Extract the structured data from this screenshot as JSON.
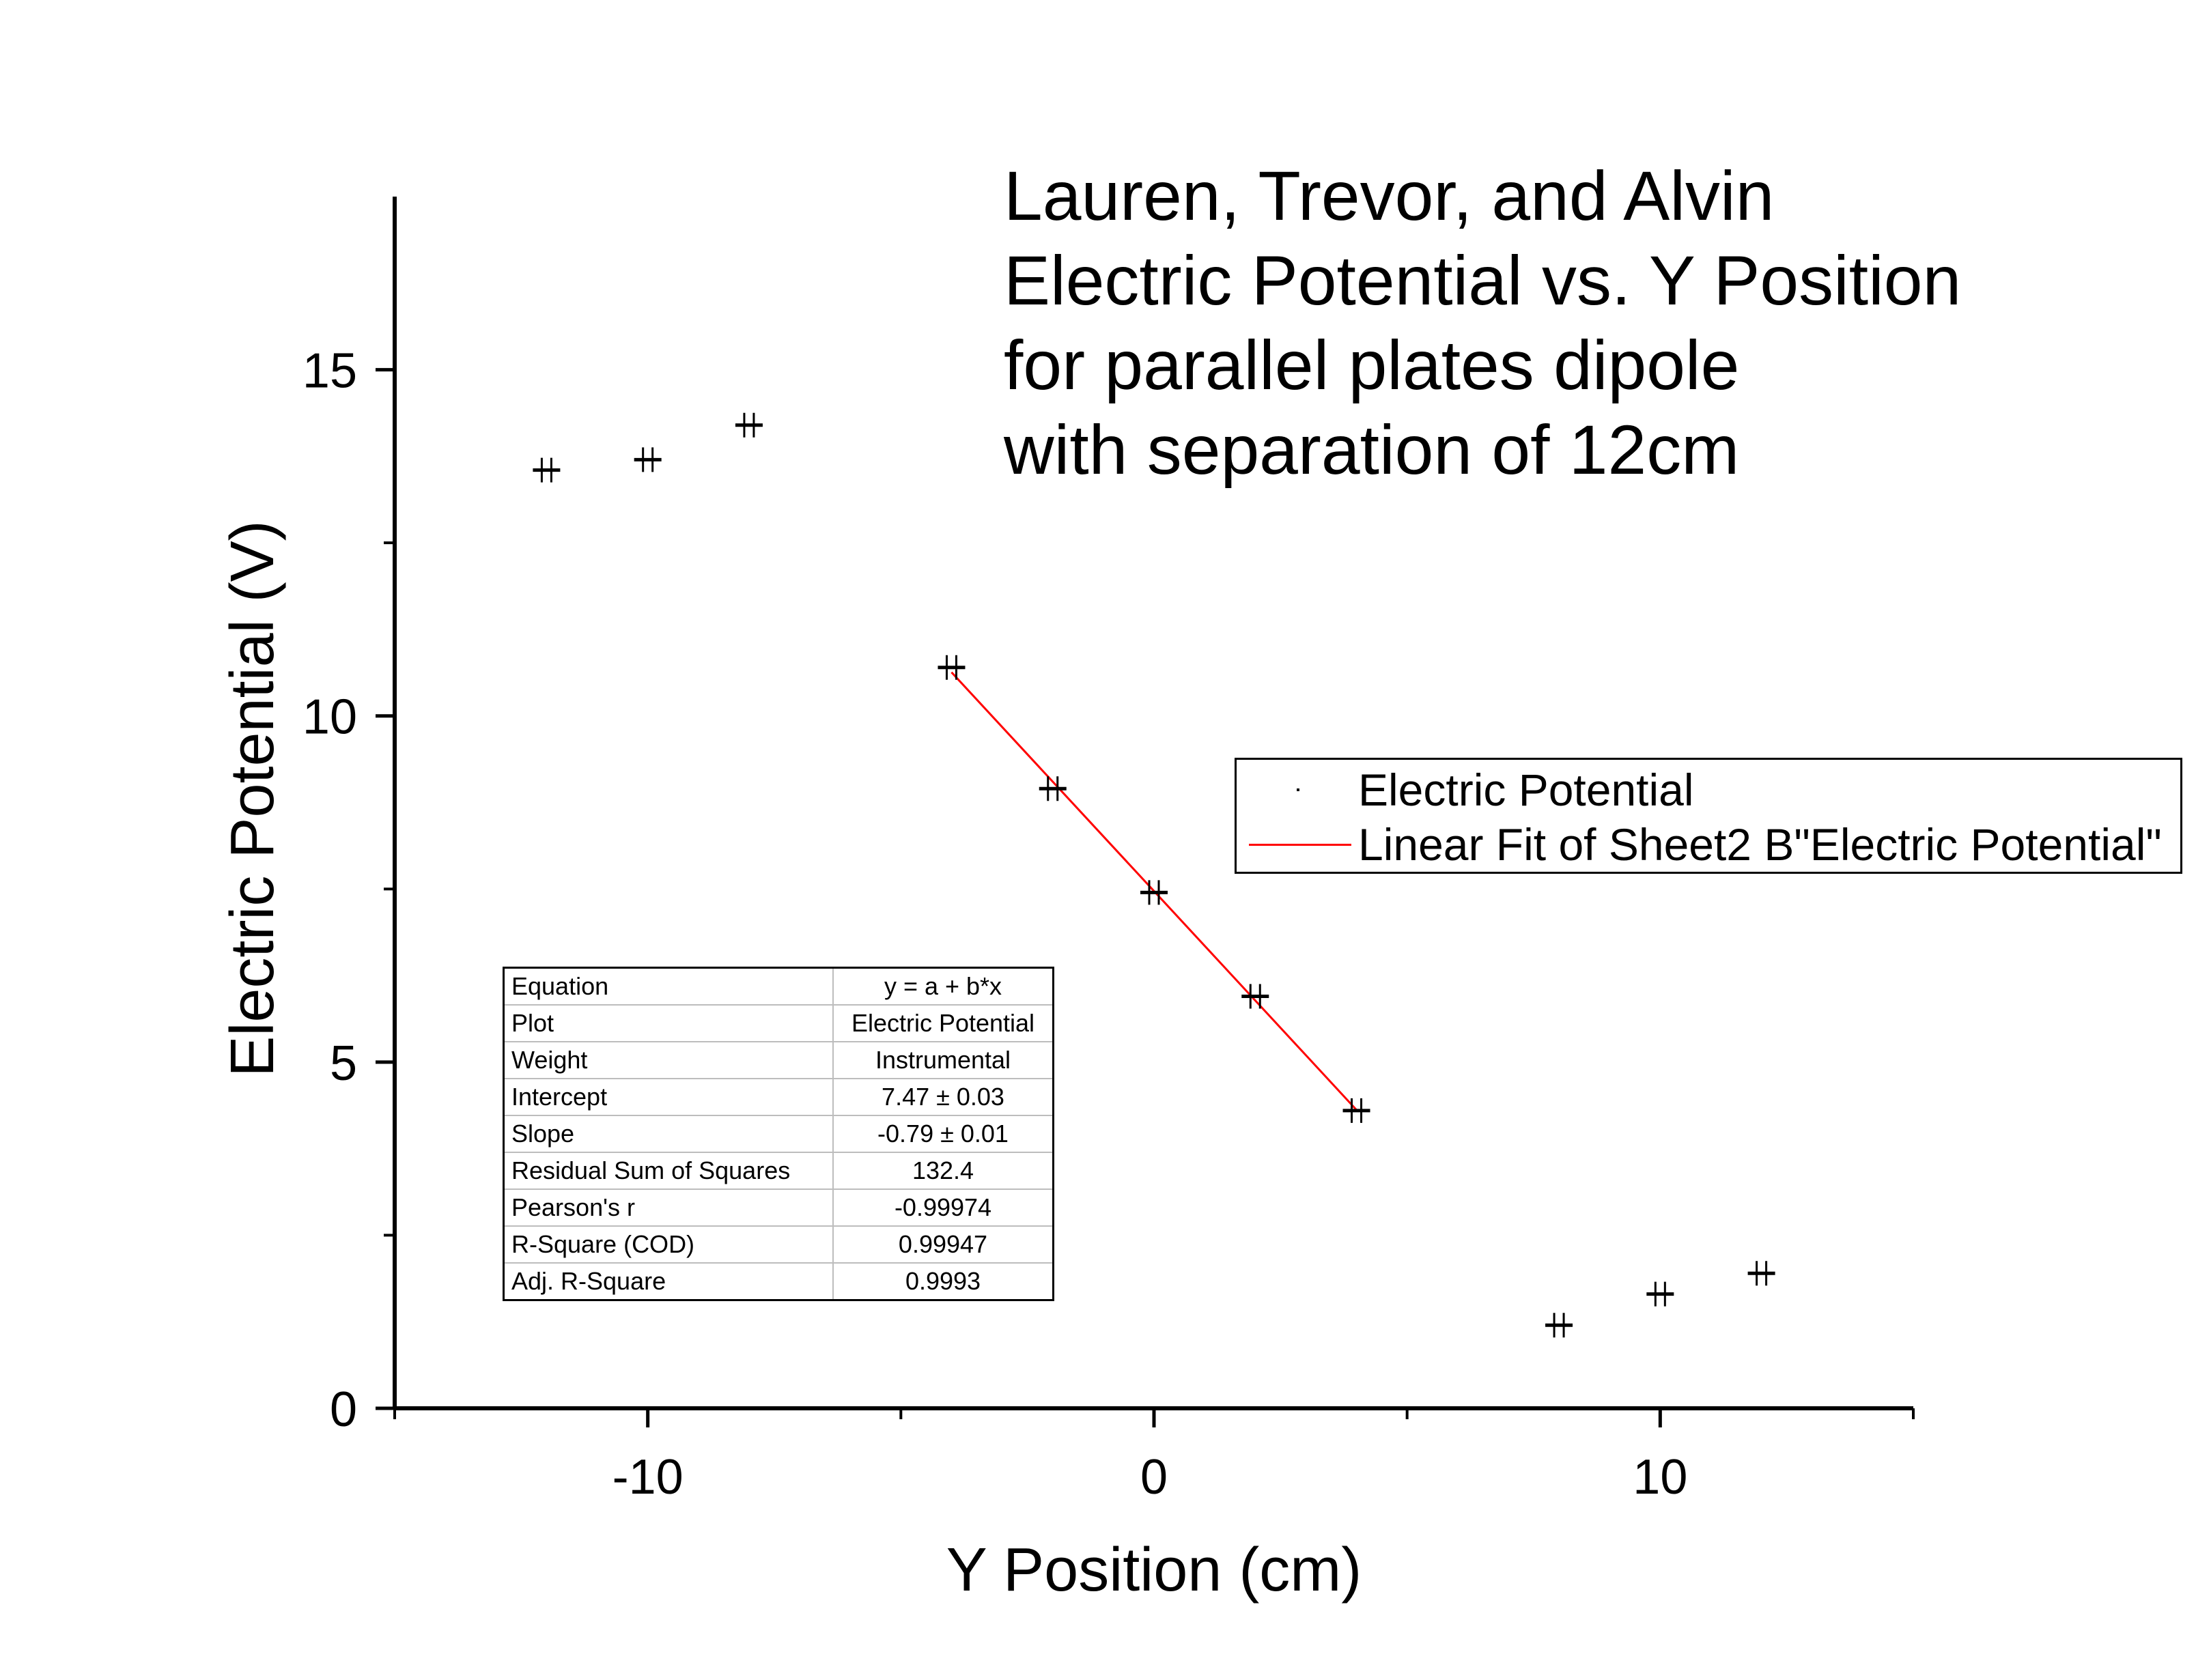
{
  "title_lines": [
    "Lauren, Trevor, and Alvin",
    "Electric Potential vs. Y Position",
    "for parallel plates dipole",
    "with separation of 12cm"
  ],
  "legend": {
    "placement": "right",
    "items": [
      {
        "label": "Electric Potential",
        "kind": "marker"
      },
      {
        "label": "Linear Fit of Sheet2 B\"Electric Potential\"",
        "kind": "line",
        "color": "#ff0000"
      }
    ]
  },
  "fit_table": {
    "rows": [
      {
        "key": "Equation",
        "value": "y = a + b*x"
      },
      {
        "key": "Plot",
        "value": "Electric Potential"
      },
      {
        "key": "Weight",
        "value": "Instrumental"
      },
      {
        "key": "Intercept",
        "value": "7.47 ± 0.03"
      },
      {
        "key": "Slope",
        "value": "-0.79 ± 0.01"
      },
      {
        "key": "Residual Sum of Squares",
        "value": "132.4"
      },
      {
        "key": "Pearson's r",
        "value": "-0.99974"
      },
      {
        "key": "R-Square (COD)",
        "value": "0.99947"
      },
      {
        "key": "Adj. R-Square",
        "value": "0.9993"
      }
    ]
  },
  "chart_data": {
    "type": "scatter",
    "xlabel": "Y Position (cm)",
    "ylabel": "Electric Potential (V)",
    "xlim": [
      -15,
      15
    ],
    "ylim": [
      0,
      17.5
    ],
    "x_major_ticks": [
      -10,
      0,
      10
    ],
    "x_tick_labels": [
      "-10",
      "0",
      "10"
    ],
    "x_minor_ticks": [
      -15,
      -5,
      5,
      15
    ],
    "y_major_ticks": [
      0,
      5,
      10,
      15
    ],
    "y_tick_labels": [
      "0",
      "5",
      "10",
      "15"
    ],
    "y_minor_ticks": [
      2.5,
      7.5,
      12.5
    ],
    "grid": false,
    "marker_color": "#000000",
    "fit_color": "#ff0000",
    "series": [
      {
        "name": "Electric Potential",
        "points": [
          {
            "x": -12,
            "y": 13.55
          },
          {
            "x": -10,
            "y": 13.7
          },
          {
            "x": -8,
            "y": 14.2
          },
          {
            "x": -4,
            "y": 10.7
          },
          {
            "x": -2,
            "y": 8.95
          },
          {
            "x": 0,
            "y": 7.45
          },
          {
            "x": 2,
            "y": 5.95
          },
          {
            "x": 4,
            "y": 4.3
          },
          {
            "x": 8,
            "y": 1.2
          },
          {
            "x": 10,
            "y": 1.65
          },
          {
            "x": 12,
            "y": 1.95
          }
        ]
      }
    ],
    "fit_line": {
      "name": "Linear Fit of Sheet2 B\"Electric Potential\"",
      "x_range": [
        -4,
        4
      ],
      "intercept": 7.47,
      "slope": -0.79
    }
  }
}
